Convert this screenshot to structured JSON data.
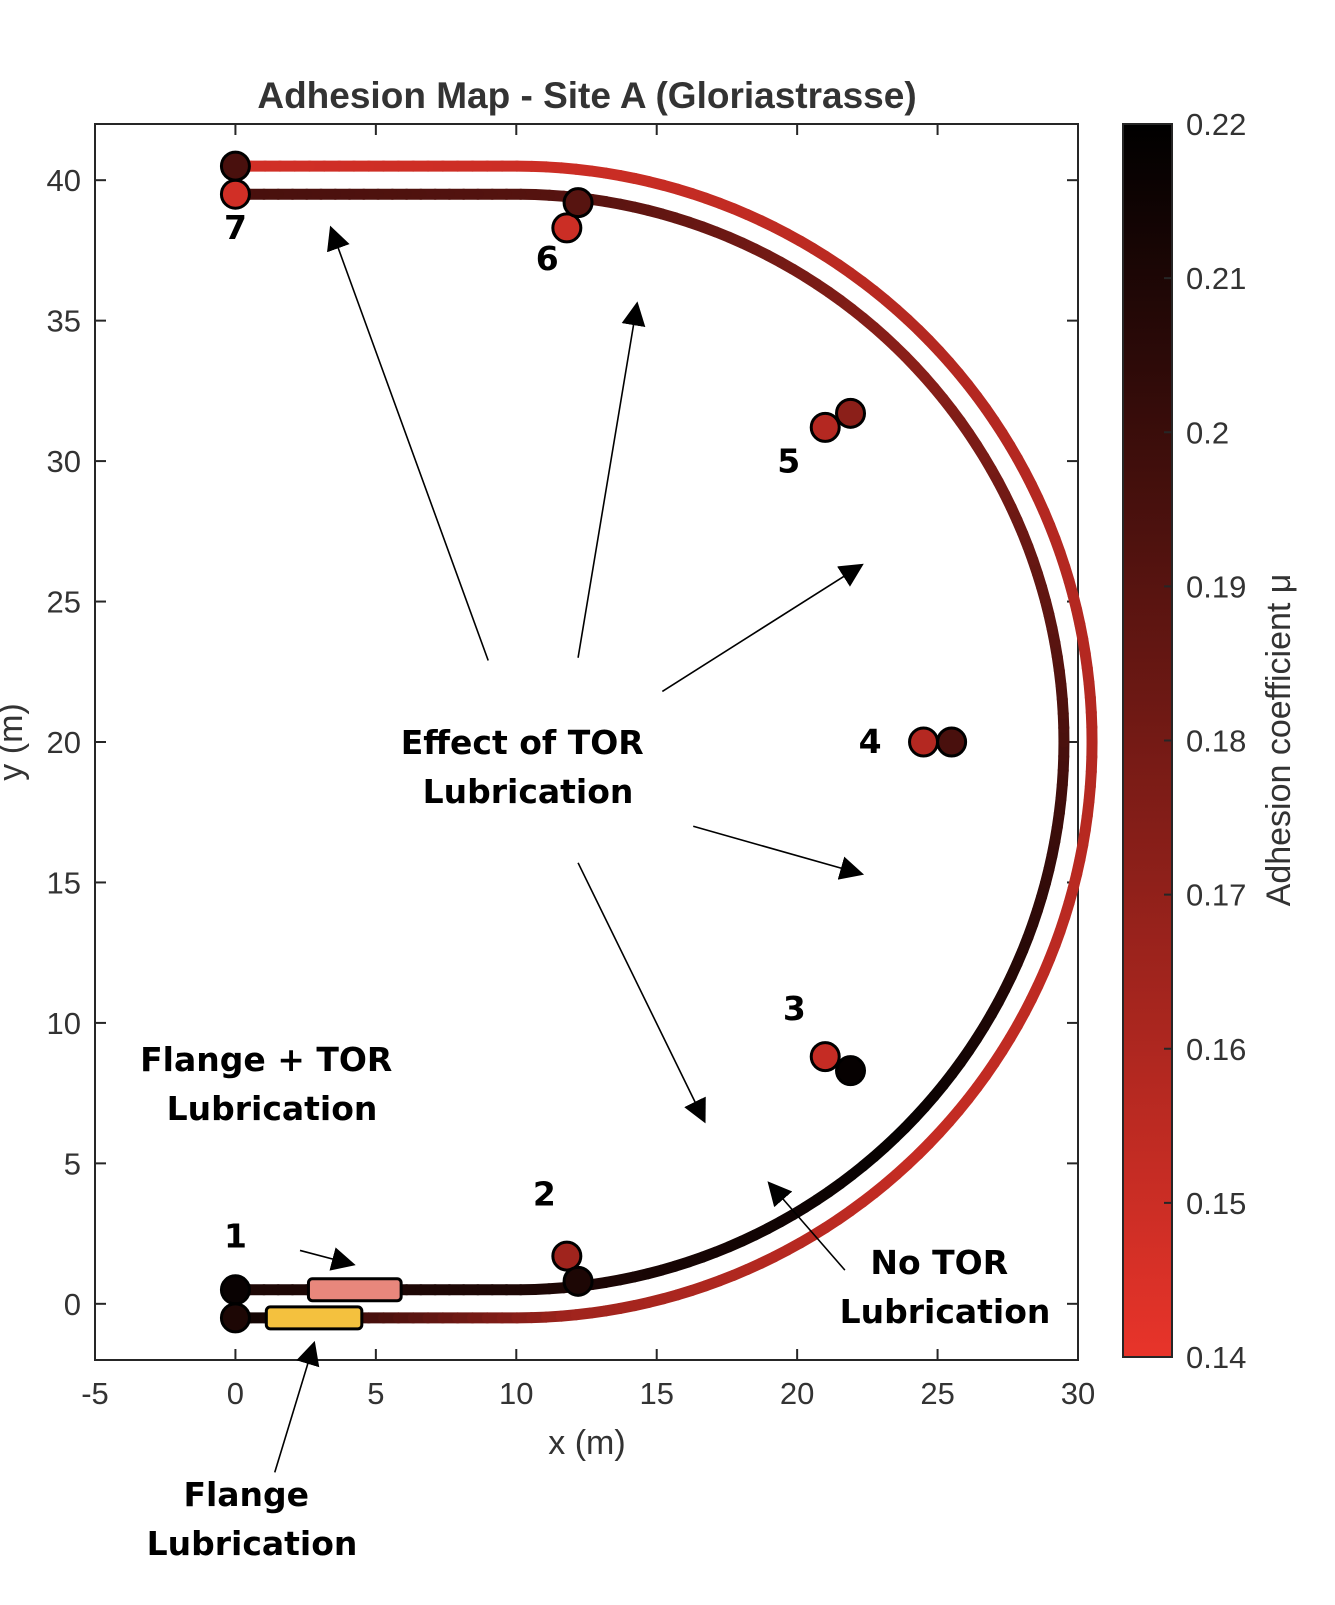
{
  "chart_data": {
    "type": "line",
    "title": "Adhesion Map - Site A (Gloriastrasse)",
    "xlabel": "x (m)",
    "ylabel": "y (m)",
    "xlim": [
      -5,
      30
    ],
    "ylim": [
      -2,
      42
    ],
    "x_ticks": [
      -5,
      0,
      5,
      10,
      15,
      20,
      25,
      30
    ],
    "y_ticks": [
      0,
      5,
      10,
      15,
      20,
      25,
      30,
      35,
      40
    ],
    "grid": false,
    "colorbar": {
      "label": "Adhesion coefficient μ",
      "range": [
        0.14,
        0.22
      ],
      "ticks": [
        "0.14",
        "0.15",
        "0.16",
        "0.17",
        "0.18",
        "0.19",
        "0.2",
        "0.21",
        "0.22"
      ],
      "colormap": [
        "#e8342a",
        "#000000"
      ]
    },
    "curve": {
      "straight_start_x": 0,
      "straight_end_x": 10,
      "center": [
        10,
        20
      ]
    },
    "series": [
      {
        "track": "outer",
        "radius": 20.5,
        "measurement_points": [
          {
            "id": "1",
            "x": 0,
            "y": 0.5,
            "mu": 0.217
          },
          {
            "id": "2",
            "x": 11.8,
            "y": 1.7,
            "mu": 0.165
          },
          {
            "id": "3",
            "x": 21.0,
            "y": 8.8,
            "mu": 0.152
          },
          {
            "id": "4",
            "x": 24.5,
            "y": 20.0,
            "mu": 0.158
          },
          {
            "id": "5",
            "x": 21.0,
            "y": 31.2,
            "mu": 0.158
          },
          {
            "id": "6",
            "x": 11.8,
            "y": 38.3,
            "mu": 0.15
          },
          {
            "id": "7",
            "x": 0,
            "y": 39.5,
            "mu": 0.148
          }
        ]
      },
      {
        "track": "inner",
        "radius": 19.5,
        "measurement_points": [
          {
            "id": "1",
            "x": 0,
            "y": -0.5,
            "mu": 0.21
          },
          {
            "id": "2",
            "x": 12.2,
            "y": 0.8,
            "mu": 0.21
          },
          {
            "id": "3",
            "x": 21.9,
            "y": 8.3,
            "mu": 0.218
          },
          {
            "id": "4",
            "x": 25.5,
            "y": 20.0,
            "mu": 0.195
          },
          {
            "id": "5",
            "x": 21.9,
            "y": 31.7,
            "mu": 0.172
          },
          {
            "id": "6",
            "x": 12.2,
            "y": 39.2,
            "mu": 0.19
          },
          {
            "id": "7",
            "x": 0,
            "y": 40.5,
            "mu": 0.195
          }
        ]
      }
    ],
    "point_labels": [
      {
        "text": "1",
        "x": 0,
        "y": 2.0
      },
      {
        "text": "2",
        "x": 11.0,
        "y": 3.5
      },
      {
        "text": "3",
        "x": 19.9,
        "y": 10.1
      },
      {
        "text": "4",
        "x": 22.6,
        "y": 19.6
      },
      {
        "text": "5",
        "x": 19.7,
        "y": 29.6
      },
      {
        "text": "6",
        "x": 11.1,
        "y": 36.8
      },
      {
        "text": "7",
        "x": 0,
        "y": 37.9
      }
    ],
    "lubricators": [
      {
        "name": "flange_tor",
        "color": "#e8877c",
        "x_from": 2.6,
        "x_to": 5.9,
        "y": 0.5
      },
      {
        "name": "flange",
        "color": "#f4c13e",
        "x_from": 1.1,
        "x_to": 4.5,
        "y": -0.5
      }
    ],
    "annotations": {
      "effect_of_tor": [
        "Effect of TOR",
        "Lubrication"
      ],
      "flange_tor": [
        "Flange + TOR",
        "Lubrication"
      ],
      "no_tor": [
        "No TOR",
        "Lubrication"
      ],
      "flange": [
        "Flange",
        "Lubrication"
      ]
    },
    "arrows": [
      {
        "from": [
          9,
          22.9
        ],
        "to": [
          3.4,
          38.3
        ]
      },
      {
        "from": [
          12.2,
          23.0
        ],
        "to": [
          14.3,
          35.6
        ]
      },
      {
        "from": [
          15.2,
          21.8
        ],
        "to": [
          22.3,
          26.3
        ]
      },
      {
        "from": [
          16.3,
          17.0
        ],
        "to": [
          22.3,
          15.3
        ]
      },
      {
        "from": [
          12.2,
          15.7
        ],
        "to": [
          16.7,
          6.5
        ]
      },
      {
        "from": [
          2.3,
          1.9
        ],
        "to": [
          4.2,
          1.4
        ]
      },
      {
        "from": [
          21.7,
          1.2
        ],
        "to": [
          19.0,
          4.3
        ]
      },
      {
        "from": [
          1.4,
          -6.0
        ],
        "to": [
          2.8,
          -1.4
        ]
      }
    ]
  }
}
